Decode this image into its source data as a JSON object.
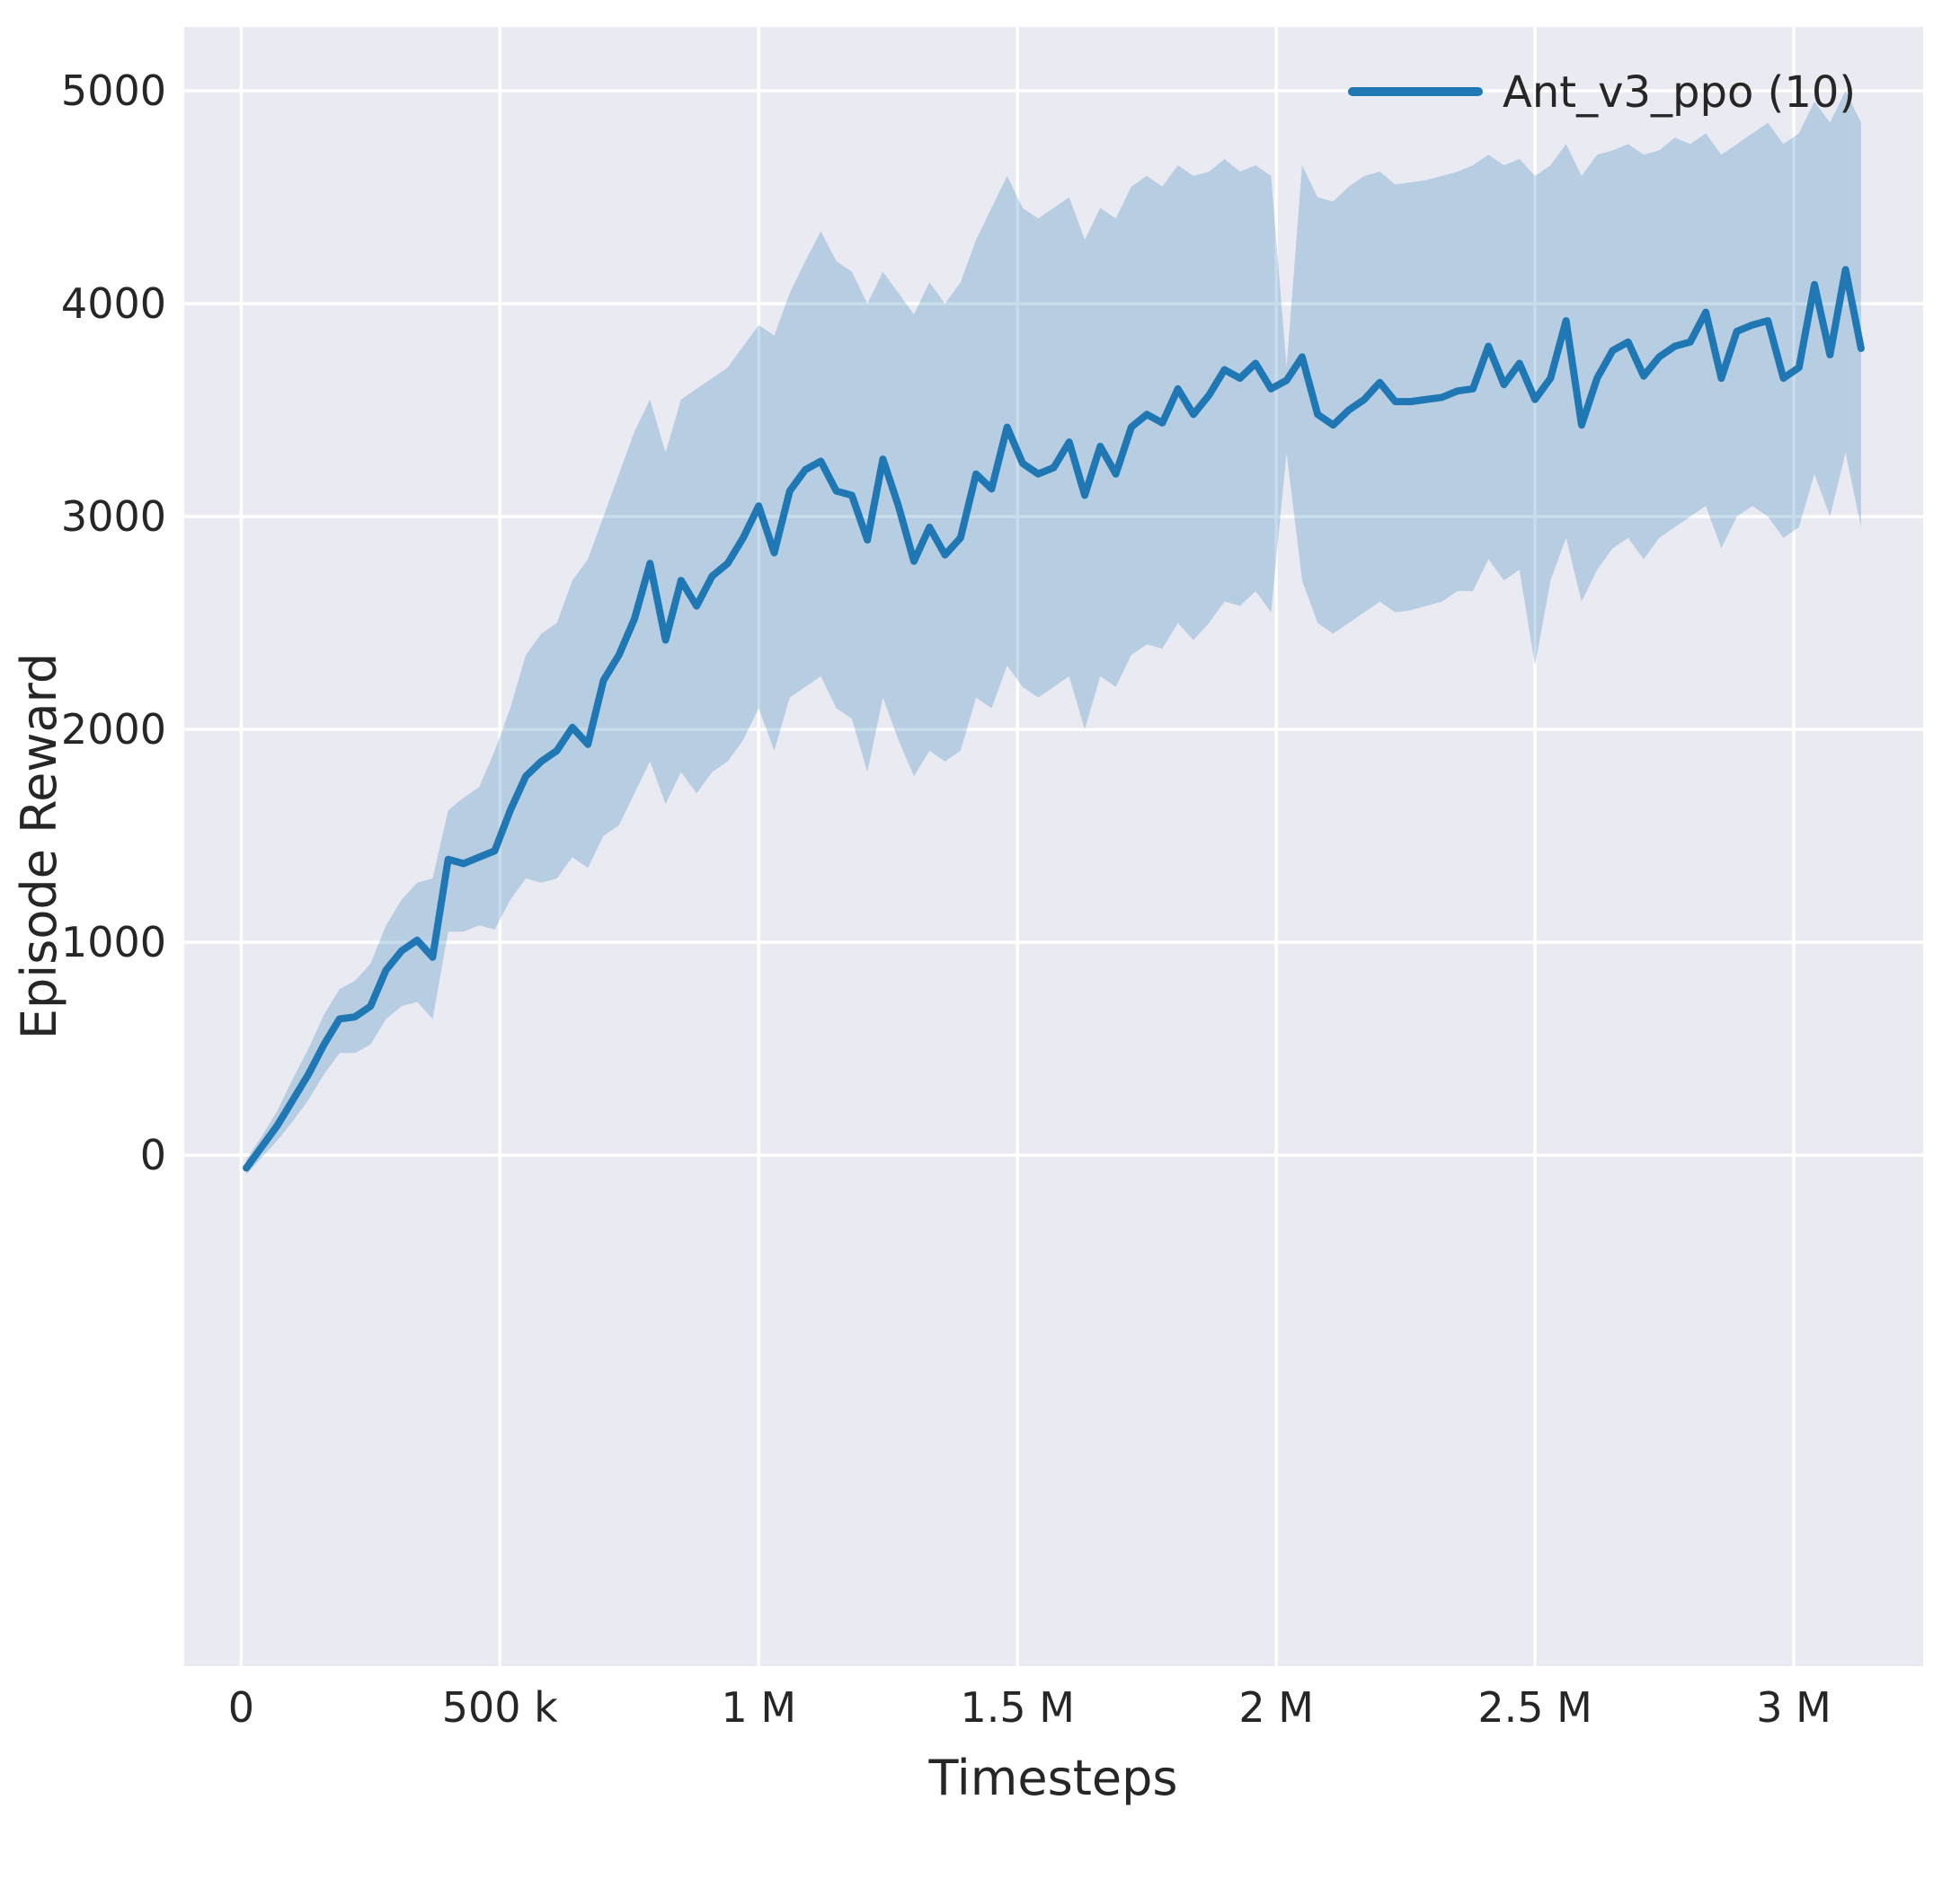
{
  "figure": {
    "xlabel": "Timesteps",
    "ylabel": "Episode Reward",
    "legend": {
      "label": "Ant_v3_ppo (10)",
      "color": "#1f77b4"
    }
  },
  "colors": {
    "axes_background": "#eaeaf2",
    "grid": "#ffffff",
    "line": "#1f77b4",
    "band": "rgba(31,119,180,0.25)",
    "text": "#262626"
  },
  "chart_data": {
    "type": "line",
    "title": "",
    "xlabel": "Timesteps",
    "ylabel": "Episode Reward",
    "grid": true,
    "legend_position": "upper right",
    "xlim": [
      -110000,
      3250000
    ],
    "ylim": [
      -2400,
      5300
    ],
    "x_ticks": [
      {
        "value": 0,
        "label": "0"
      },
      {
        "value": 500000,
        "label": "500 k"
      },
      {
        "value": 1000000,
        "label": "1 M"
      },
      {
        "value": 1500000,
        "label": "1.5 M"
      },
      {
        "value": 2000000,
        "label": "2 M"
      },
      {
        "value": 2500000,
        "label": "2.5 M"
      },
      {
        "value": 3000000,
        "label": "3 M"
      }
    ],
    "y_ticks": [
      {
        "value": 0,
        "label": "0"
      },
      {
        "value": 1000,
        "label": "1000"
      },
      {
        "value": 2000,
        "label": "2000"
      },
      {
        "value": 3000,
        "label": "3000"
      },
      {
        "value": 4000,
        "label": "4000"
      },
      {
        "value": 5000,
        "label": "5000"
      }
    ],
    "series": [
      {
        "name": "Ant_v3_ppo (10)",
        "color": "#1f77b4",
        "band_color": "rgba(31,119,180,0.25)",
        "x": [
          10000,
          40000,
          70000,
          100000,
          130000,
          160000,
          190000,
          220000,
          250000,
          280000,
          310000,
          340000,
          370000,
          400000,
          430000,
          460000,
          490000,
          520000,
          550000,
          580000,
          610000,
          640000,
          670000,
          700000,
          730000,
          760000,
          790000,
          820000,
          850000,
          880000,
          910000,
          940000,
          970000,
          1000000,
          1030000,
          1060000,
          1090000,
          1120000,
          1150000,
          1180000,
          1210000,
          1240000,
          1270000,
          1300000,
          1330000,
          1360000,
          1390000,
          1420000,
          1450000,
          1480000,
          1510000,
          1540000,
          1570000,
          1600000,
          1630000,
          1660000,
          1690000,
          1720000,
          1750000,
          1780000,
          1810000,
          1840000,
          1870000,
          1900000,
          1930000,
          1960000,
          1990000,
          2020000,
          2050000,
          2080000,
          2110000,
          2140000,
          2170000,
          2200000,
          2230000,
          2260000,
          2290000,
          2320000,
          2350000,
          2380000,
          2410000,
          2440000,
          2470000,
          2500000,
          2530000,
          2560000,
          2590000,
          2620000,
          2650000,
          2680000,
          2710000,
          2740000,
          2770000,
          2800000,
          2830000,
          2860000,
          2890000,
          2920000,
          2950000,
          2980000,
          3010000,
          3040000,
          3070000,
          3100000,
          3130000
        ],
        "mean": [
          -60,
          40,
          140,
          260,
          380,
          520,
          640,
          650,
          700,
          870,
          960,
          1010,
          930,
          1390,
          1370,
          1400,
          1430,
          1620,
          1780,
          1850,
          1900,
          2010,
          1930,
          2230,
          2350,
          2520,
          2780,
          2420,
          2700,
          2580,
          2720,
          2780,
          2900,
          3050,
          2830,
          3120,
          3220,
          3260,
          3120,
          3100,
          2890,
          3270,
          3050,
          2790,
          2950,
          2820,
          2900,
          3200,
          3130,
          3420,
          3250,
          3200,
          3230,
          3350,
          3100,
          3330,
          3200,
          3420,
          3480,
          3440,
          3600,
          3480,
          3570,
          3690,
          3650,
          3720,
          3600,
          3640,
          3750,
          3480,
          3430,
          3500,
          3550,
          3630,
          3540,
          3540,
          3550,
          3560,
          3590,
          3600,
          3800,
          3620,
          3720,
          3550,
          3650,
          3920,
          3430,
          3650,
          3780,
          3820,
          3660,
          3750,
          3800,
          3820,
          3960,
          3650,
          3870,
          3900,
          3920,
          3650,
          3700,
          4090,
          3760,
          4160,
          3790
        ],
        "lower": [
          -90,
          -10,
          70,
          160,
          260,
          380,
          480,
          480,
          520,
          640,
          700,
          720,
          640,
          1050,
          1050,
          1080,
          1060,
          1200,
          1300,
          1280,
          1300,
          1400,
          1350,
          1500,
          1550,
          1700,
          1850,
          1650,
          1800,
          1700,
          1800,
          1850,
          1950,
          2100,
          1900,
          2150,
          2200,
          2250,
          2100,
          2050,
          1800,
          2150,
          1950,
          1780,
          1900,
          1850,
          1900,
          2150,
          2100,
          2300,
          2200,
          2150,
          2200,
          2250,
          2000,
          2250,
          2200,
          2350,
          2400,
          2380,
          2500,
          2420,
          2500,
          2600,
          2580,
          2650,
          2550,
          3300,
          2700,
          2500,
          2450,
          2500,
          2550,
          2600,
          2550,
          2560,
          2580,
          2600,
          2650,
          2650,
          2800,
          2700,
          2750,
          2300,
          2700,
          2900,
          2600,
          2750,
          2850,
          2900,
          2800,
          2900,
          2950,
          3000,
          3050,
          2850,
          3000,
          3050,
          3000,
          2900,
          2950,
          3200,
          3000,
          3300,
          2950
        ],
        "upper": [
          -20,
          90,
          210,
          360,
          500,
          660,
          780,
          820,
          900,
          1080,
          1200,
          1280,
          1300,
          1620,
          1680,
          1730,
          1900,
          2100,
          2350,
          2450,
          2500,
          2700,
          2800,
          3000,
          3200,
          3400,
          3550,
          3300,
          3550,
          3600,
          3650,
          3700,
          3800,
          3900,
          3850,
          4050,
          4200,
          4340,
          4200,
          4150,
          4000,
          4150,
          4050,
          3950,
          4100,
          4000,
          4100,
          4300,
          4450,
          4600,
          4450,
          4400,
          4450,
          4500,
          4300,
          4450,
          4400,
          4550,
          4600,
          4550,
          4650,
          4600,
          4620,
          4680,
          4620,
          4650,
          4600,
          3700,
          4650,
          4500,
          4480,
          4550,
          4600,
          4620,
          4560,
          4570,
          4580,
          4600,
          4620,
          4650,
          4700,
          4650,
          4680,
          4600,
          4650,
          4750,
          4600,
          4700,
          4720,
          4750,
          4700,
          4720,
          4780,
          4750,
          4800,
          4700,
          4750,
          4800,
          4850,
          4750,
          4800,
          4950,
          4850,
          5000,
          4850
        ]
      }
    ]
  }
}
